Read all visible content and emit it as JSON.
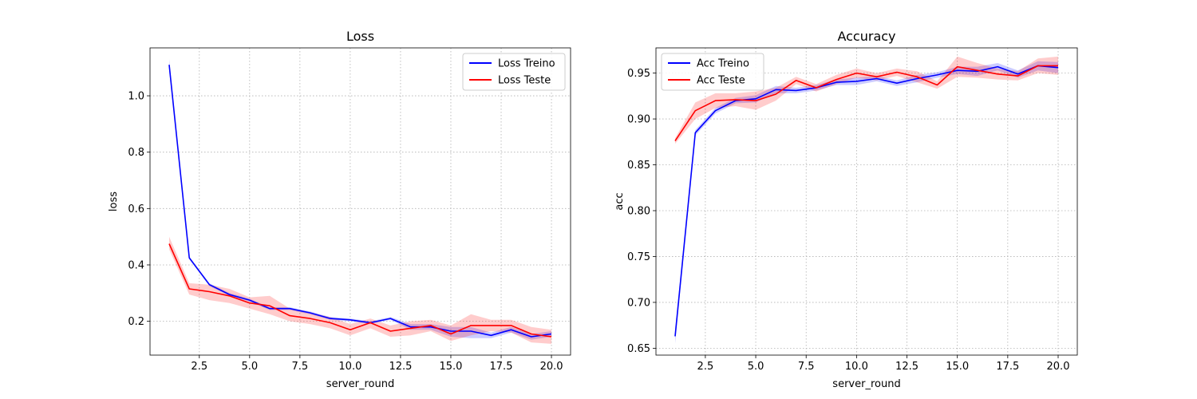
{
  "chart_data": [
    {
      "type": "line",
      "title": "Loss",
      "xlabel": "server_round",
      "ylabel": "loss",
      "xlim": [
        0.05,
        20.95
      ],
      "ylim": [
        0.08,
        1.17
      ],
      "xticks": [
        2.5,
        5.0,
        7.5,
        10.0,
        12.5,
        15.0,
        17.5,
        20.0
      ],
      "xtick_labels": [
        "2.5",
        "5.0",
        "7.5",
        "10.0",
        "12.5",
        "15.0",
        "17.5",
        "20.0"
      ],
      "yticks": [
        0.2,
        0.4,
        0.6,
        0.8,
        1.0
      ],
      "ytick_labels": [
        "0.2",
        "0.4",
        "0.6",
        "0.8",
        "1.0"
      ],
      "grid": true,
      "legend_position": "top-right",
      "x": [
        1,
        2,
        3,
        4,
        5,
        6,
        7,
        8,
        9,
        10,
        11,
        12,
        13,
        14,
        15,
        16,
        17,
        18,
        19,
        20
      ],
      "series": [
        {
          "name": "Loss Treino",
          "color": "#0000ff",
          "values": [
            1.11,
            0.425,
            0.33,
            0.295,
            0.275,
            0.245,
            0.245,
            0.23,
            0.21,
            0.205,
            0.195,
            0.21,
            0.18,
            0.18,
            0.165,
            0.165,
            0.15,
            0.17,
            0.145,
            0.155
          ],
          "lower": [
            1.09,
            0.42,
            0.325,
            0.29,
            0.27,
            0.24,
            0.24,
            0.225,
            0.205,
            0.2,
            0.19,
            0.205,
            0.17,
            0.17,
            0.145,
            0.14,
            0.14,
            0.16,
            0.135,
            0.145
          ],
          "upper": [
            1.13,
            0.43,
            0.335,
            0.3,
            0.28,
            0.25,
            0.25,
            0.235,
            0.215,
            0.21,
            0.2,
            0.215,
            0.19,
            0.19,
            0.18,
            0.18,
            0.16,
            0.18,
            0.155,
            0.165
          ]
        },
        {
          "name": "Loss Teste",
          "color": "#ff0000",
          "values": [
            0.475,
            0.315,
            0.305,
            0.29,
            0.265,
            0.255,
            0.22,
            0.21,
            0.195,
            0.17,
            0.195,
            0.165,
            0.175,
            0.185,
            0.155,
            0.185,
            0.185,
            0.185,
            0.155,
            0.145
          ],
          "lower": [
            0.455,
            0.295,
            0.275,
            0.265,
            0.245,
            0.225,
            0.2,
            0.19,
            0.175,
            0.15,
            0.175,
            0.145,
            0.15,
            0.165,
            0.13,
            0.15,
            0.165,
            0.16,
            0.125,
            0.12
          ],
          "upper": [
            0.5,
            0.335,
            0.33,
            0.315,
            0.285,
            0.29,
            0.245,
            0.23,
            0.215,
            0.19,
            0.21,
            0.185,
            0.2,
            0.205,
            0.185,
            0.225,
            0.205,
            0.205,
            0.18,
            0.17
          ]
        }
      ]
    },
    {
      "type": "line",
      "title": "Accuracy",
      "xlabel": "server_round",
      "ylabel": "acc",
      "xlim": [
        0.05,
        20.95
      ],
      "ylim": [
        0.6425,
        0.9775
      ],
      "xticks": [
        2.5,
        5.0,
        7.5,
        10.0,
        12.5,
        15.0,
        17.5,
        20.0
      ],
      "xtick_labels": [
        "2.5",
        "5.0",
        "7.5",
        "10.0",
        "12.5",
        "15.0",
        "17.5",
        "20.0"
      ],
      "yticks": [
        0.65,
        0.7,
        0.75,
        0.8,
        0.85,
        0.9,
        0.95
      ],
      "ytick_labels": [
        "0.65",
        "0.70",
        "0.75",
        "0.80",
        "0.85",
        "0.90",
        "0.95"
      ],
      "grid": true,
      "legend_position": "top-left",
      "x": [
        1,
        2,
        3,
        4,
        5,
        6,
        7,
        8,
        9,
        10,
        11,
        12,
        13,
        14,
        15,
        16,
        17,
        18,
        19,
        20
      ],
      "series": [
        {
          "name": "Acc Treino",
          "color": "#0000ff",
          "values": [
            0.663,
            0.885,
            0.909,
            0.92,
            0.922,
            0.932,
            0.931,
            0.934,
            0.94,
            0.941,
            0.944,
            0.939,
            0.944,
            0.948,
            0.953,
            0.952,
            0.957,
            0.949,
            0.958,
            0.956
          ],
          "lower": [
            0.655,
            0.882,
            0.906,
            0.917,
            0.918,
            0.928,
            0.928,
            0.931,
            0.937,
            0.937,
            0.941,
            0.936,
            0.94,
            0.945,
            0.949,
            0.947,
            0.953,
            0.945,
            0.953,
            0.95
          ],
          "upper": [
            0.671,
            0.888,
            0.912,
            0.923,
            0.926,
            0.936,
            0.934,
            0.937,
            0.943,
            0.945,
            0.947,
            0.942,
            0.948,
            0.951,
            0.957,
            0.957,
            0.961,
            0.953,
            0.963,
            0.962
          ]
        },
        {
          "name": "Acc Teste",
          "color": "#ff0000",
          "values": [
            0.876,
            0.909,
            0.92,
            0.921,
            0.92,
            0.927,
            0.942,
            0.934,
            0.943,
            0.95,
            0.946,
            0.951,
            0.946,
            0.937,
            0.957,
            0.953,
            0.949,
            0.947,
            0.958,
            0.958
          ],
          "lower": [
            0.873,
            0.9,
            0.912,
            0.914,
            0.91,
            0.92,
            0.938,
            0.93,
            0.938,
            0.945,
            0.942,
            0.947,
            0.94,
            0.933,
            0.946,
            0.945,
            0.943,
            0.942,
            0.95,
            0.948
          ],
          "upper": [
            0.879,
            0.918,
            0.928,
            0.928,
            0.93,
            0.934,
            0.946,
            0.938,
            0.948,
            0.955,
            0.95,
            0.955,
            0.952,
            0.941,
            0.968,
            0.961,
            0.955,
            0.952,
            0.966,
            0.968
          ]
        }
      ]
    }
  ]
}
